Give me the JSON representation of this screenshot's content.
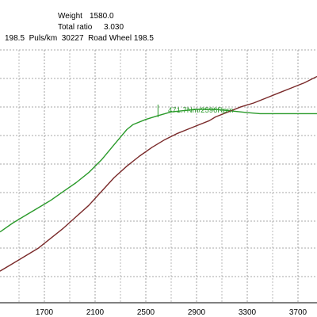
{
  "header": {
    "weight_label": "Weight",
    "weight_value": "1580.0",
    "ratio_label": "Total ratio",
    "ratio_value": "3.030",
    "line3": "198.5  Puls/km  30227  Road Wheel 198.5"
  },
  "chart_data": {
    "type": "line",
    "title": "",
    "xlabel": "",
    "ylabel": "",
    "xlim": [
      1350,
      3850
    ],
    "x_ticks": [
      "1700",
      "2100",
      "2500",
      "2900",
      "3300",
      "3700"
    ],
    "grid": true,
    "colors": {
      "green": "#2a9a2a",
      "brown": "#7a2a2a",
      "grid": "#8a8a8a",
      "plot_bg": "#ffffff"
    },
    "series": [
      {
        "color": "green",
        "points": [
          [
            1350,
            0.28
          ],
          [
            1450,
            0.315
          ],
          [
            1550,
            0.345
          ],
          [
            1650,
            0.375
          ],
          [
            1750,
            0.405
          ],
          [
            1850,
            0.44
          ],
          [
            1950,
            0.475
          ],
          [
            2050,
            0.515
          ],
          [
            2150,
            0.565
          ],
          [
            2250,
            0.625
          ],
          [
            2300,
            0.655
          ],
          [
            2350,
            0.685
          ],
          [
            2400,
            0.705
          ],
          [
            2500,
            0.725
          ],
          [
            2596,
            0.74
          ],
          [
            2700,
            0.755
          ],
          [
            2800,
            0.76
          ],
          [
            2900,
            0.765
          ],
          [
            3000,
            0.765
          ],
          [
            3050,
            0.765
          ],
          [
            3150,
            0.76
          ],
          [
            3300,
            0.752
          ],
          [
            3400,
            0.748
          ],
          [
            3500,
            0.748
          ],
          [
            3700,
            0.748
          ],
          [
            3850,
            0.748
          ]
        ]
      },
      {
        "color": "brown",
        "points": [
          [
            1350,
            0.125
          ],
          [
            1450,
            0.155
          ],
          [
            1550,
            0.185
          ],
          [
            1650,
            0.215
          ],
          [
            1750,
            0.255
          ],
          [
            1850,
            0.295
          ],
          [
            1950,
            0.34
          ],
          [
            2050,
            0.385
          ],
          [
            2150,
            0.44
          ],
          [
            2250,
            0.495
          ],
          [
            2350,
            0.54
          ],
          [
            2450,
            0.58
          ],
          [
            2550,
            0.615
          ],
          [
            2650,
            0.645
          ],
          [
            2750,
            0.67
          ],
          [
            2850,
            0.69
          ],
          [
            2950,
            0.71
          ],
          [
            3000,
            0.72
          ],
          [
            3050,
            0.735
          ],
          [
            3150,
            0.755
          ],
          [
            3250,
            0.775
          ],
          [
            3350,
            0.79
          ],
          [
            3450,
            0.81
          ],
          [
            3550,
            0.83
          ],
          [
            3650,
            0.85
          ],
          [
            3750,
            0.87
          ],
          [
            3850,
            0.895
          ]
        ]
      }
    ],
    "marker": {
      "x": 2596,
      "label": "471.7Nm/2596Rpm",
      "color": "green"
    }
  }
}
